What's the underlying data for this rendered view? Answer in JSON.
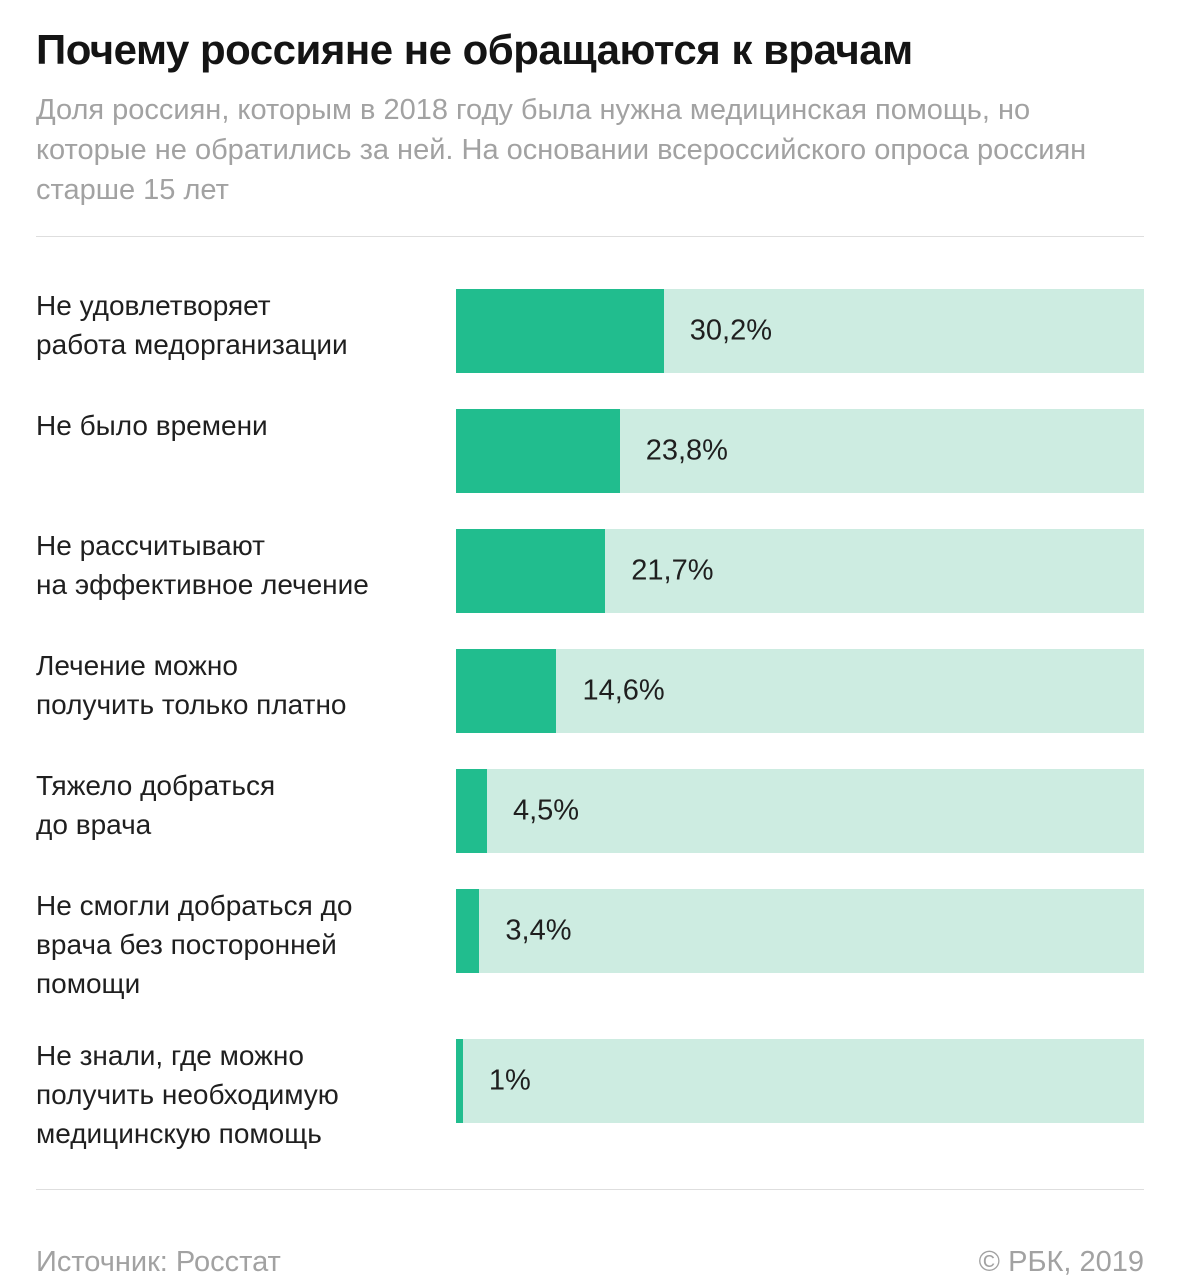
{
  "chart_data": {
    "type": "bar",
    "orientation": "horizontal",
    "title": "Почему россияне не обращаются к врачам",
    "subtitle": "Доля россиян, которым в 2018 году была нужна медицинская помощь, но которые не обратились за ней. На основании всероссийского опроса россиян старше 15 лет",
    "categories": [
      "Не удовлетворяет\nработа медорганизации",
      "Не было времени",
      "Не рассчитывают\nна эффективное лечение",
      "Лечение можно\nполучить только платно",
      "Тяжело добраться\nдо врача",
      "Не смогли добраться до\nврача без посторонней\nпомощи",
      "Не знали, где можно\nполучить необходимую\nмедицинскую помощь"
    ],
    "values": [
      30.2,
      23.8,
      21.7,
      14.6,
      4.5,
      3.4,
      1
    ],
    "value_labels": [
      "30,2%",
      "23,8%",
      "21,7%",
      "14,6%",
      "4,5%",
      "3,4%",
      "1%"
    ],
    "xlim": [
      0,
      100
    ],
    "grid": false,
    "legend": false,
    "colors": {
      "bar_fill": "#21bd8e",
      "bar_track": "#cdece1",
      "title": "#141414",
      "subtitle": "#a2a2a2"
    },
    "source": "Источник: Росстат",
    "copyright": "© РБК, 2019"
  }
}
